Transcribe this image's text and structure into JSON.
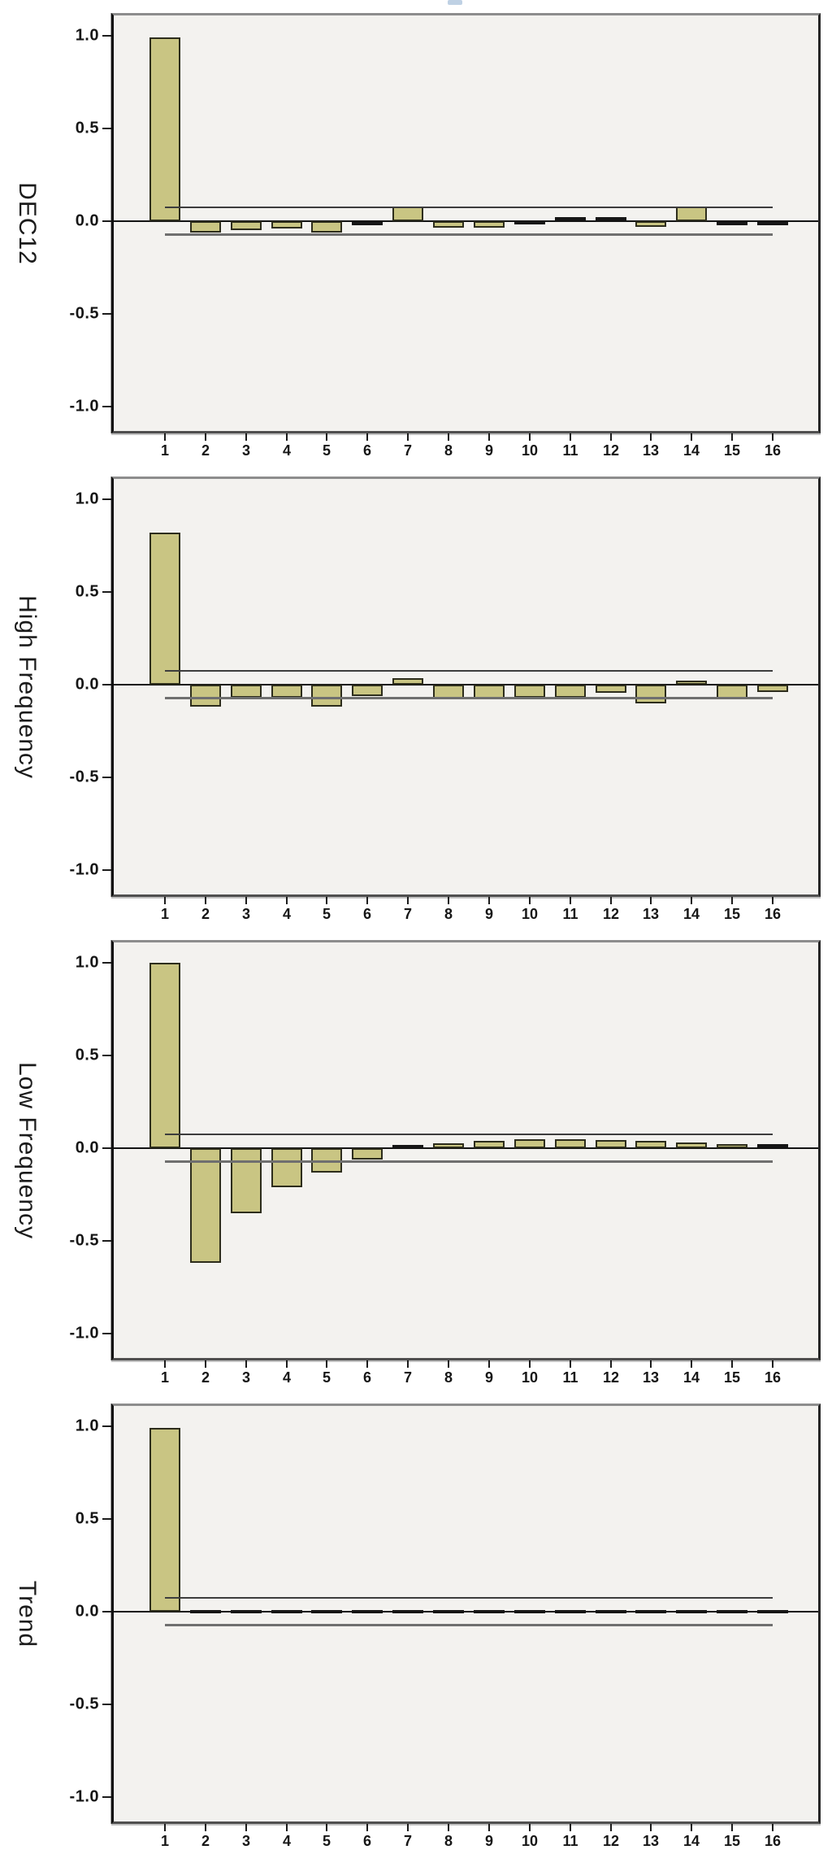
{
  "page": {
    "artifact_color": "#9db9d6"
  },
  "axis": {
    "y_tick_labels": [
      "1.0",
      "0.5",
      "0.0",
      "-0.5",
      "-1.0"
    ],
    "y_tick_values": [
      1.0,
      0.5,
      0.0,
      -0.5,
      -1.0
    ],
    "x_tick_labels": [
      "1",
      "2",
      "3",
      "4",
      "5",
      "6",
      "7",
      "8",
      "9",
      "10",
      "11",
      "12",
      "13",
      "14",
      "15",
      "16"
    ]
  },
  "style": {
    "bar_fill": "#c9c583",
    "bar_border": "#2d2d1c",
    "plot_bg": "#f3f2ef",
    "zero_line": "#131313",
    "ci_upper": "#3d3d3d",
    "ci_lower": "#6f6f6f"
  },
  "chart_data": [
    {
      "type": "bar",
      "title": "DEC12",
      "x": [
        1,
        2,
        3,
        4,
        5,
        6,
        7,
        8,
        9,
        10,
        11,
        12,
        13,
        14,
        15,
        16
      ],
      "values": [
        0.99,
        -0.06,
        -0.05,
        -0.04,
        -0.06,
        -0.012,
        0.08,
        -0.035,
        -0.035,
        -0.01,
        0.012,
        0.015,
        -0.03,
        0.08,
        -0.012,
        -0.012
      ],
      "ci_bound": 0.07,
      "ylim": [
        -1.0,
        1.0
      ],
      "ylabel": "DEC12",
      "legend": "none",
      "grid": false
    },
    {
      "type": "bar",
      "title": "High Frequency",
      "x": [
        1,
        2,
        3,
        4,
        5,
        6,
        7,
        8,
        9,
        10,
        11,
        12,
        13,
        14,
        15,
        16
      ],
      "values": [
        0.82,
        -0.12,
        -0.07,
        -0.07,
        -0.12,
        -0.06,
        0.035,
        -0.08,
        -0.08,
        -0.07,
        -0.07,
        -0.045,
        -0.1,
        0.02,
        -0.08,
        -0.04
      ],
      "ci_bound": 0.07,
      "ylim": [
        -1.0,
        1.0
      ],
      "ylabel": "High Frequency",
      "legend": "none",
      "grid": false
    },
    {
      "type": "bar",
      "title": "Low Frequency",
      "x": [
        1,
        2,
        3,
        4,
        5,
        6,
        7,
        8,
        9,
        10,
        11,
        12,
        13,
        14,
        15,
        16
      ],
      "values": [
        1.0,
        -0.62,
        -0.35,
        -0.21,
        -0.13,
        -0.06,
        0.008,
        0.025,
        0.04,
        0.05,
        0.05,
        0.045,
        0.04,
        0.03,
        0.02,
        0.012
      ],
      "ci_bound": 0.07,
      "ylim": [
        -1.0,
        1.0
      ],
      "ylabel": "Low Frequency",
      "legend": "none",
      "grid": false
    },
    {
      "type": "bar",
      "title": "Trend",
      "x": [
        1,
        2,
        3,
        4,
        5,
        6,
        7,
        8,
        9,
        10,
        11,
        12,
        13,
        14,
        15,
        16
      ],
      "values": [
        0.99,
        0,
        0,
        0,
        0,
        0,
        0,
        0,
        0,
        0,
        0,
        0,
        0,
        0,
        0,
        0
      ],
      "ci_bound": 0.07,
      "ylim": [
        -1.0,
        1.0
      ],
      "ylabel": "Trend",
      "legend": "none",
      "grid": false
    }
  ]
}
